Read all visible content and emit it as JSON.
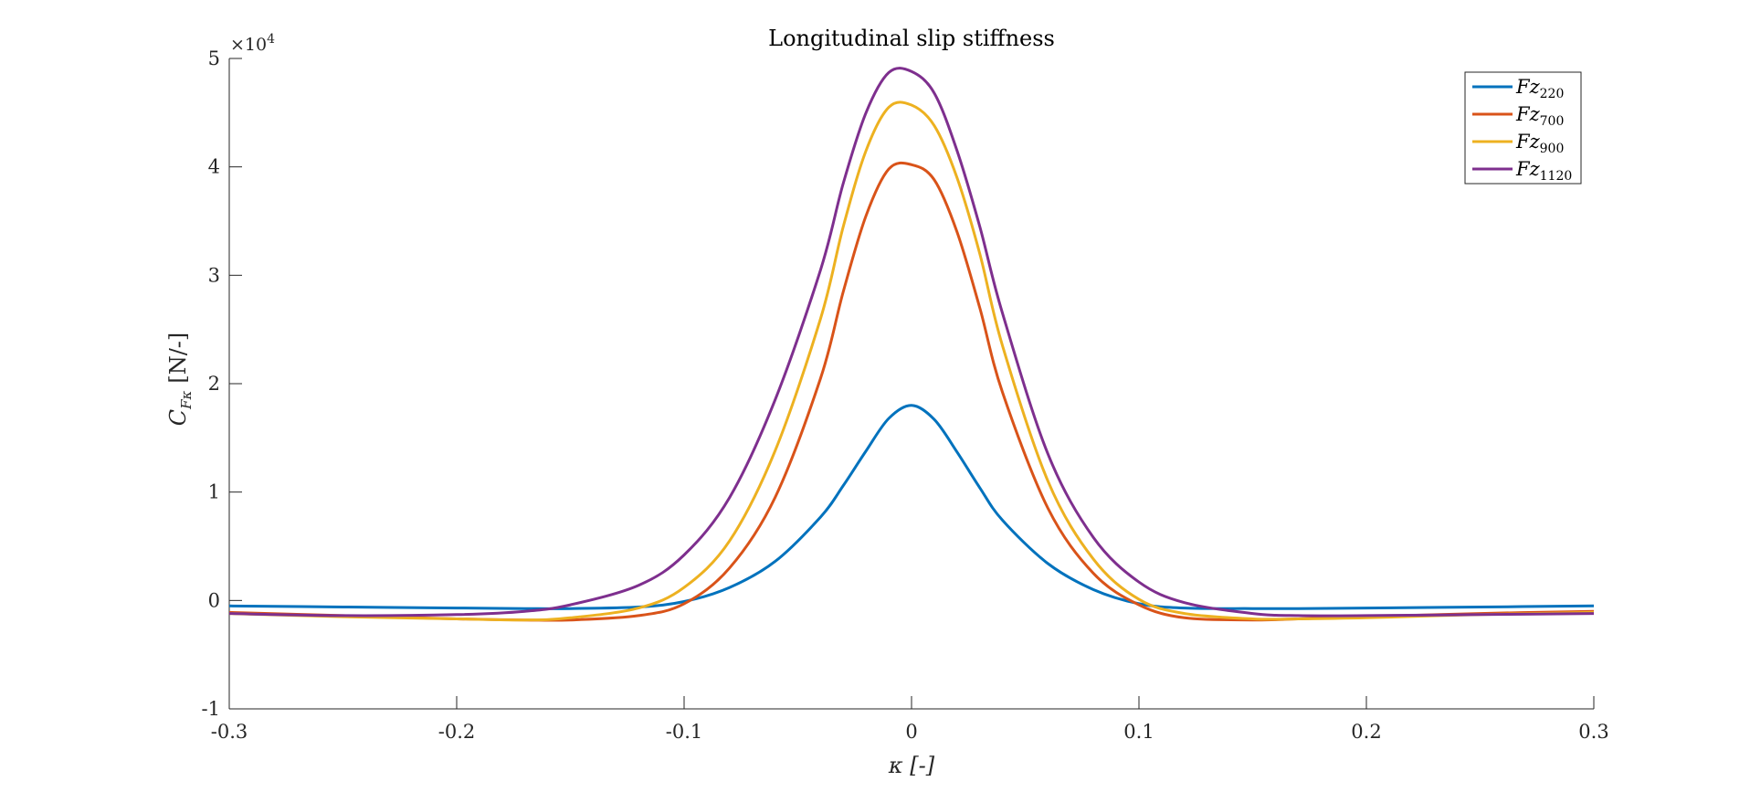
{
  "chart_data": {
    "type": "line",
    "title": "Longitudinal slip stiffness",
    "xlabel": "κ [-]",
    "ylabel_main": "C",
    "ylabel_sub": "Fκ",
    "ylabel_units": "[N/-]",
    "y_exponent_label": "×10",
    "y_exponent_power": "4",
    "xlim": [
      -0.3,
      0.3
    ],
    "ylim": [
      -1,
      5
    ],
    "y_multiplier": 10000,
    "xticks": [
      -0.3,
      -0.2,
      -0.1,
      0,
      0.1,
      0.2,
      0.3
    ],
    "xtick_labels": [
      "-0.3",
      "-0.2",
      "-0.1",
      "0",
      "0.1",
      "0.2",
      "0.3"
    ],
    "yticks": [
      -1,
      0,
      1,
      2,
      3,
      4,
      5
    ],
    "ytick_labels": [
      "-1",
      "0",
      "1",
      "2",
      "3",
      "4",
      "5"
    ],
    "grid": false,
    "legend_position": "top-right",
    "x": [
      -0.3,
      -0.25,
      -0.2,
      -0.17,
      -0.15,
      -0.12,
      -0.1,
      -0.08,
      -0.06,
      -0.04,
      -0.03,
      -0.02,
      -0.01,
      0,
      0.01,
      0.02,
      0.03,
      0.04,
      0.06,
      0.08,
      0.1,
      0.12,
      0.15,
      0.17,
      0.2,
      0.25,
      0.3
    ],
    "series": [
      {
        "name": "Fz",
        "name_sub": "220",
        "color": "#0072BD",
        "values": [
          -0.05,
          -0.06,
          -0.07,
          -0.075,
          -0.075,
          -0.06,
          -0.01,
          0.12,
          0.36,
          0.77,
          1.06,
          1.38,
          1.68,
          1.8,
          1.67,
          1.37,
          1.04,
          0.74,
          0.34,
          0.1,
          -0.03,
          -0.07,
          -0.075,
          -0.075,
          -0.07,
          -0.06,
          -0.05
        ]
      },
      {
        "name": "Fz",
        "name_sub": "700",
        "color": "#D95319",
        "values": [
          -0.11,
          -0.14,
          -0.17,
          -0.18,
          -0.18,
          -0.14,
          -0.03,
          0.3,
          0.95,
          2.05,
          2.85,
          3.55,
          3.98,
          4.02,
          3.88,
          3.4,
          2.7,
          1.92,
          0.85,
          0.25,
          -0.04,
          -0.16,
          -0.18,
          -0.17,
          -0.15,
          -0.12,
          -0.1
        ]
      },
      {
        "name": "Fz",
        "name_sub": "900",
        "color": "#EDB120",
        "values": [
          -0.12,
          -0.15,
          -0.17,
          -0.18,
          -0.16,
          -0.07,
          0.12,
          0.55,
          1.38,
          2.6,
          3.45,
          4.15,
          4.55,
          4.57,
          4.38,
          3.9,
          3.2,
          2.35,
          1.1,
          0.38,
          0.01,
          -0.12,
          -0.17,
          -0.17,
          -0.16,
          -0.13,
          -0.11
        ]
      },
      {
        "name": "Fz",
        "name_sub": "1120",
        "color": "#7E2F8E",
        "values": [
          -0.12,
          -0.14,
          -0.13,
          -0.1,
          -0.04,
          0.14,
          0.42,
          0.95,
          1.85,
          3.05,
          3.85,
          4.5,
          4.87,
          4.88,
          4.68,
          4.15,
          3.45,
          2.65,
          1.35,
          0.58,
          0.17,
          -0.02,
          -0.12,
          -0.14,
          -0.14,
          -0.13,
          -0.12
        ]
      }
    ]
  }
}
